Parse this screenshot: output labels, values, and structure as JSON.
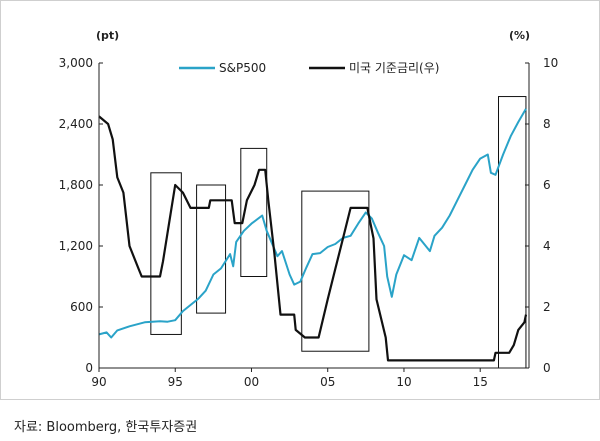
{
  "chart_data": {
    "type": "line",
    "left_unit": "(pt)",
    "right_unit": "(%)",
    "x_ticks": [
      "90",
      "95",
      "00",
      "05",
      "10",
      "15"
    ],
    "x_tick_years": [
      1990,
      1995,
      2000,
      2005,
      2010,
      2015
    ],
    "xlim": [
      1990,
      2018.2
    ],
    "y_left_ticks": [
      "0",
      "600",
      "1,200",
      "1,800",
      "2,400",
      "3,000"
    ],
    "y_left_tick_values": [
      0,
      600,
      1200,
      1800,
      2400,
      3000
    ],
    "ylim_left": [
      0,
      3000
    ],
    "y_right_ticks": [
      "0",
      "2",
      "4",
      "6",
      "8",
      "10"
    ],
    "y_right_tick_values": [
      0,
      2,
      4,
      6,
      8,
      10
    ],
    "ylim_right": [
      0,
      10
    ],
    "grid": false,
    "legend_position": "top-center",
    "series": [
      {
        "name": "S&P500",
        "axis": "left",
        "color": "#2aa3c8",
        "points": [
          [
            1990.0,
            330
          ],
          [
            1990.5,
            350
          ],
          [
            1990.8,
            300
          ],
          [
            1991.2,
            370
          ],
          [
            1992.0,
            410
          ],
          [
            1993.0,
            450
          ],
          [
            1994.0,
            460
          ],
          [
            1994.5,
            455
          ],
          [
            1995.0,
            470
          ],
          [
            1995.5,
            560
          ],
          [
            1996.0,
            620
          ],
          [
            1996.5,
            680
          ],
          [
            1997.0,
            760
          ],
          [
            1997.5,
            920
          ],
          [
            1998.0,
            980
          ],
          [
            1998.6,
            1120
          ],
          [
            1998.8,
            1000
          ],
          [
            1999.0,
            1240
          ],
          [
            1999.5,
            1350
          ],
          [
            2000.0,
            1420
          ],
          [
            2000.7,
            1500
          ],
          [
            2001.0,
            1350
          ],
          [
            2001.7,
            1100
          ],
          [
            2002.0,
            1150
          ],
          [
            2002.5,
            920
          ],
          [
            2002.8,
            820
          ],
          [
            2003.2,
            850
          ],
          [
            2003.6,
            990
          ],
          [
            2004.0,
            1120
          ],
          [
            2004.5,
            1130
          ],
          [
            2005.0,
            1190
          ],
          [
            2005.5,
            1220
          ],
          [
            2006.0,
            1280
          ],
          [
            2006.5,
            1300
          ],
          [
            2007.0,
            1420
          ],
          [
            2007.5,
            1530
          ],
          [
            2007.9,
            1470
          ],
          [
            2008.3,
            1330
          ],
          [
            2008.7,
            1200
          ],
          [
            2008.9,
            900
          ],
          [
            2009.2,
            700
          ],
          [
            2009.5,
            920
          ],
          [
            2010.0,
            1110
          ],
          [
            2010.5,
            1060
          ],
          [
            2011.0,
            1280
          ],
          [
            2011.7,
            1150
          ],
          [
            2012.0,
            1300
          ],
          [
            2012.5,
            1380
          ],
          [
            2013.0,
            1500
          ],
          [
            2013.5,
            1650
          ],
          [
            2014.0,
            1800
          ],
          [
            2014.5,
            1950
          ],
          [
            2015.0,
            2060
          ],
          [
            2015.5,
            2100
          ],
          [
            2015.7,
            1920
          ],
          [
            2016.0,
            1900
          ],
          [
            2016.5,
            2100
          ],
          [
            2017.0,
            2280
          ],
          [
            2017.5,
            2420
          ],
          [
            2018.0,
            2550
          ]
        ]
      },
      {
        "name": "미국 기준금리(우)",
        "axis": "right",
        "color": "#111111",
        "points": [
          [
            1990.0,
            8.25
          ],
          [
            1990.6,
            8.0
          ],
          [
            1990.9,
            7.5
          ],
          [
            1991.2,
            6.25
          ],
          [
            1991.6,
            5.75
          ],
          [
            1992.0,
            4.0
          ],
          [
            1992.6,
            3.25
          ],
          [
            1992.8,
            3.0
          ],
          [
            1993.0,
            3.0
          ],
          [
            1994.0,
            3.0
          ],
          [
            1994.2,
            3.5
          ],
          [
            1994.6,
            4.75
          ],
          [
            1995.0,
            6.0
          ],
          [
            1995.5,
            5.75
          ],
          [
            1996.0,
            5.25
          ],
          [
            1997.2,
            5.25
          ],
          [
            1997.3,
            5.5
          ],
          [
            1998.7,
            5.5
          ],
          [
            1998.9,
            4.75
          ],
          [
            1999.4,
            4.75
          ],
          [
            1999.7,
            5.5
          ],
          [
            2000.2,
            6.0
          ],
          [
            2000.5,
            6.5
          ],
          [
            2000.9,
            6.5
          ],
          [
            2001.1,
            5.5
          ],
          [
            2001.5,
            3.75
          ],
          [
            2001.9,
            1.75
          ],
          [
            2002.8,
            1.75
          ],
          [
            2002.9,
            1.25
          ],
          [
            2003.5,
            1.0
          ],
          [
            2004.4,
            1.0
          ],
          [
            2005.0,
            2.25
          ],
          [
            2005.5,
            3.25
          ],
          [
            2006.0,
            4.25
          ],
          [
            2006.5,
            5.25
          ],
          [
            2007.6,
            5.25
          ],
          [
            2007.8,
            4.75
          ],
          [
            2008.0,
            4.25
          ],
          [
            2008.2,
            2.25
          ],
          [
            2008.8,
            1.0
          ],
          [
            2008.95,
            0.25
          ],
          [
            2015.9,
            0.25
          ],
          [
            2016.0,
            0.5
          ],
          [
            2016.9,
            0.5
          ],
          [
            2017.2,
            0.75
          ],
          [
            2017.5,
            1.25
          ],
          [
            2017.9,
            1.5
          ],
          [
            2018.0,
            1.75
          ]
        ]
      }
    ],
    "highlight_boxes": [
      {
        "x0": 1993.4,
        "x1": 1995.4,
        "y0": 1.1,
        "y1": 6.4
      },
      {
        "x0": 1996.4,
        "x1": 1998.3,
        "y0": 1.8,
        "y1": 6.0
      },
      {
        "x0": 1999.3,
        "x1": 2001.0,
        "y0": 3.0,
        "y1": 7.2
      },
      {
        "x0": 2003.3,
        "x1": 2007.7,
        "y0": 0.55,
        "y1": 5.8
      },
      {
        "x0": 2016.2,
        "x1": 2018.0,
        "y0": 0.0,
        "y1": 8.9
      }
    ]
  },
  "source_note": "자료: Bloomberg, 한국투자증권"
}
